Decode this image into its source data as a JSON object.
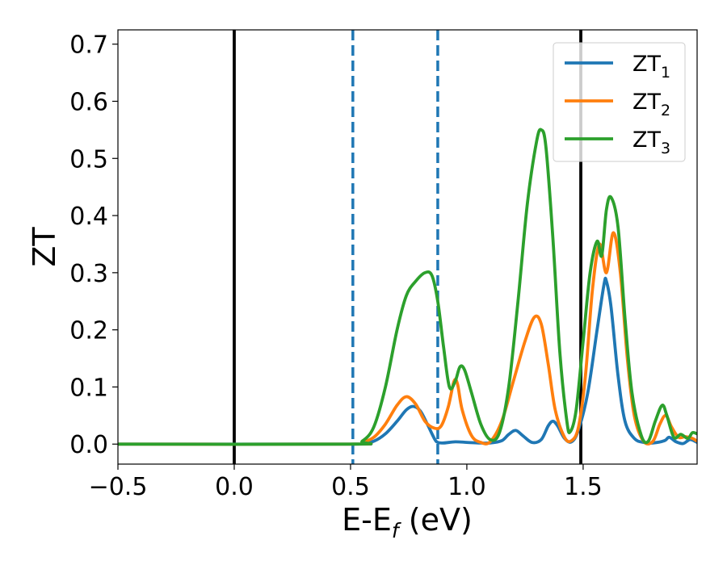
{
  "chart_data": {
    "type": "line",
    "xlabel": "E-E",
    "xlabel_sub": "f",
    "xlabel_unit": " (eV)",
    "ylabel": "ZT",
    "xlim": [
      -0.5,
      1.99
    ],
    "ylim": [
      -0.035,
      0.725
    ],
    "x_ticks": [
      -0.5,
      0.0,
      0.5,
      1.0,
      1.5
    ],
    "x_tick_labels": [
      "−0.5",
      "0.0",
      "0.5",
      "1.0",
      "1.5"
    ],
    "y_ticks": [
      0.0,
      0.1,
      0.2,
      0.3,
      0.4,
      0.5,
      0.6,
      0.7
    ],
    "y_tick_labels": [
      "0.0",
      "0.1",
      "0.2",
      "0.3",
      "0.4",
      "0.5",
      "0.6",
      "0.7"
    ],
    "grid": false,
    "legend_position": "top-right",
    "vertical_lines": [
      {
        "x": 0.0,
        "color": "#000000",
        "style": "solid"
      },
      {
        "x": 1.49,
        "color": "#000000",
        "style": "solid"
      },
      {
        "x": 0.51,
        "color": "#1f77b4",
        "style": "dashed"
      },
      {
        "x": 0.875,
        "color": "#1f77b4",
        "style": "dashed"
      }
    ],
    "series": [
      {
        "name": "ZT",
        "name_sub": "1",
        "color": "#1f77b4",
        "points": [
          [
            -0.5,
            0
          ],
          [
            0.5,
            0
          ],
          [
            0.55,
            0.001
          ],
          [
            0.6,
            0.005
          ],
          [
            0.65,
            0.018
          ],
          [
            0.7,
            0.04
          ],
          [
            0.74,
            0.06
          ],
          [
            0.77,
            0.066
          ],
          [
            0.8,
            0.058
          ],
          [
            0.83,
            0.035
          ],
          [
            0.86,
            0.01
          ],
          [
            0.875,
            0.003
          ],
          [
            0.9,
            0.002
          ],
          [
            0.95,
            0.004
          ],
          [
            1.0,
            0.003
          ],
          [
            1.05,
            0.002
          ],
          [
            1.1,
            0.002
          ],
          [
            1.15,
            0.006
          ],
          [
            1.18,
            0.017
          ],
          [
            1.21,
            0.024
          ],
          [
            1.24,
            0.015
          ],
          [
            1.28,
            0.003
          ],
          [
            1.32,
            0.008
          ],
          [
            1.35,
            0.032
          ],
          [
            1.37,
            0.04
          ],
          [
            1.39,
            0.032
          ],
          [
            1.42,
            0.01
          ],
          [
            1.45,
            0.004
          ],
          [
            1.48,
            0.025
          ],
          [
            1.52,
            0.09
          ],
          [
            1.56,
            0.2
          ],
          [
            1.59,
            0.28
          ],
          [
            1.6,
            0.285
          ],
          [
            1.62,
            0.24
          ],
          [
            1.65,
            0.12
          ],
          [
            1.68,
            0.04
          ],
          [
            1.72,
            0.01
          ],
          [
            1.76,
            0.003
          ],
          [
            1.8,
            0.002
          ],
          [
            1.85,
            0.006
          ],
          [
            1.87,
            0.012
          ],
          [
            1.9,
            0.004
          ],
          [
            1.93,
            0.001
          ],
          [
            1.96,
            0.008
          ],
          [
            1.99,
            0.003
          ]
        ]
      },
      {
        "name": "ZT",
        "name_sub": "2",
        "color": "#ff7f0e",
        "points": [
          [
            -0.5,
            0
          ],
          [
            0.5,
            0
          ],
          [
            0.55,
            0.003
          ],
          [
            0.6,
            0.012
          ],
          [
            0.65,
            0.035
          ],
          [
            0.7,
            0.068
          ],
          [
            0.74,
            0.083
          ],
          [
            0.78,
            0.07
          ],
          [
            0.82,
            0.04
          ],
          [
            0.86,
            0.028
          ],
          [
            0.89,
            0.032
          ],
          [
            0.92,
            0.065
          ],
          [
            0.945,
            0.11
          ],
          [
            0.96,
            0.105
          ],
          [
            0.98,
            0.06
          ],
          [
            1.02,
            0.015
          ],
          [
            1.06,
            0.003
          ],
          [
            1.1,
            0.004
          ],
          [
            1.15,
            0.04
          ],
          [
            1.2,
            0.11
          ],
          [
            1.25,
            0.18
          ],
          [
            1.29,
            0.222
          ],
          [
            1.32,
            0.21
          ],
          [
            1.35,
            0.14
          ],
          [
            1.38,
            0.06
          ],
          [
            1.42,
            0.012
          ],
          [
            1.45,
            0.006
          ],
          [
            1.48,
            0.03
          ],
          [
            1.51,
            0.12
          ],
          [
            1.54,
            0.27
          ],
          [
            1.57,
            0.35
          ],
          [
            1.6,
            0.3
          ],
          [
            1.63,
            0.37
          ],
          [
            1.66,
            0.3
          ],
          [
            1.69,
            0.15
          ],
          [
            1.72,
            0.05
          ],
          [
            1.76,
            0.005
          ],
          [
            1.8,
            0.005
          ],
          [
            1.83,
            0.035
          ],
          [
            1.855,
            0.05
          ],
          [
            1.88,
            0.03
          ],
          [
            1.91,
            0.012
          ],
          [
            1.94,
            0.013
          ],
          [
            1.97,
            0.01
          ],
          [
            1.99,
            0.005
          ]
        ]
      },
      {
        "name": "ZT",
        "name_sub": "3",
        "color": "#2ca02c",
        "points": [
          [
            -0.5,
            0
          ],
          [
            0.5,
            0
          ],
          [
            0.55,
            0.005
          ],
          [
            0.6,
            0.03
          ],
          [
            0.65,
            0.1
          ],
          [
            0.7,
            0.2
          ],
          [
            0.74,
            0.26
          ],
          [
            0.78,
            0.285
          ],
          [
            0.82,
            0.3
          ],
          [
            0.85,
            0.295
          ],
          [
            0.875,
            0.25
          ],
          [
            0.9,
            0.17
          ],
          [
            0.925,
            0.1
          ],
          [
            0.95,
            0.11
          ],
          [
            0.97,
            0.135
          ],
          [
            0.99,
            0.13
          ],
          [
            1.02,
            0.09
          ],
          [
            1.06,
            0.035
          ],
          [
            1.1,
            0.008
          ],
          [
            1.14,
            0.02
          ],
          [
            1.18,
            0.1
          ],
          [
            1.22,
            0.25
          ],
          [
            1.26,
            0.42
          ],
          [
            1.3,
            0.53
          ],
          [
            1.32,
            0.55
          ],
          [
            1.34,
            0.52
          ],
          [
            1.37,
            0.36
          ],
          [
            1.4,
            0.16
          ],
          [
            1.43,
            0.04
          ],
          [
            1.445,
            0.022
          ],
          [
            1.47,
            0.06
          ],
          [
            1.5,
            0.18
          ],
          [
            1.53,
            0.3
          ],
          [
            1.56,
            0.355
          ],
          [
            1.58,
            0.33
          ],
          [
            1.6,
            0.41
          ],
          [
            1.62,
            0.432
          ],
          [
            1.65,
            0.38
          ],
          [
            1.68,
            0.22
          ],
          [
            1.71,
            0.09
          ],
          [
            1.75,
            0.015
          ],
          [
            1.78,
            0.005
          ],
          [
            1.81,
            0.04
          ],
          [
            1.84,
            0.068
          ],
          [
            1.86,
            0.05
          ],
          [
            1.89,
            0.012
          ],
          [
            1.92,
            0.017
          ],
          [
            1.95,
            0.01
          ],
          [
            1.97,
            0.02
          ],
          [
            1.99,
            0.018
          ]
        ]
      }
    ]
  }
}
